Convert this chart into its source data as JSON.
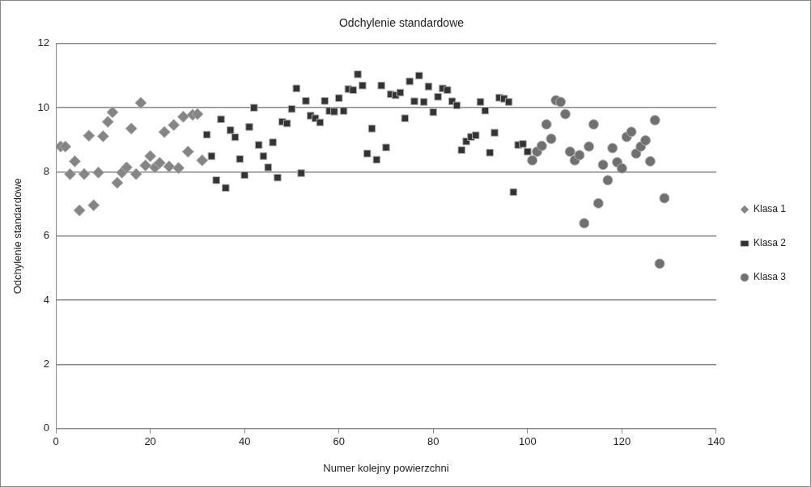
{
  "chart_data": {
    "type": "scatter",
    "title": "Odchylenie standardowe",
    "xlabel": "Numer kolejny powierzchni",
    "ylabel": "Odchylenie standardowe",
    "xlim": [
      0,
      140
    ],
    "xticks": [
      0,
      20,
      40,
      60,
      80,
      100,
      120,
      140
    ],
    "ylim": [
      0,
      12
    ],
    "yticks": [
      0,
      2,
      4,
      6,
      8,
      10,
      12
    ],
    "grid": "y",
    "legend": "right",
    "series": [
      {
        "name": "Klasa 1",
        "color": "#858585",
        "marker": "diamond",
        "x": [
          1,
          2,
          3,
          4,
          5,
          6,
          7,
          8,
          9,
          10,
          11,
          12,
          13,
          14,
          15,
          16,
          17,
          18,
          19,
          20,
          21,
          22,
          23,
          24,
          25,
          26,
          27,
          28,
          29,
          30,
          31
        ],
        "values": [
          8.79,
          8.79,
          7.93,
          8.33,
          6.8,
          7.93,
          9.13,
          6.96,
          7.98,
          9.11,
          9.56,
          9.86,
          7.66,
          7.98,
          8.14,
          9.35,
          7.93,
          10.15,
          8.2,
          8.49,
          8.14,
          8.28,
          9.24,
          8.17,
          9.46,
          8.12,
          9.72,
          8.63,
          9.78,
          9.8,
          8.36
        ]
      },
      {
        "name": "Klasa 2",
        "color": "#333333",
        "marker": "square",
        "x": [
          32,
          33,
          34,
          35,
          36,
          37,
          38,
          39,
          40,
          41,
          42,
          43,
          44,
          45,
          46,
          47,
          48,
          49,
          50,
          51,
          52,
          53,
          54,
          55,
          56,
          57,
          58,
          59,
          60,
          61,
          62,
          63,
          64,
          65,
          66,
          67,
          68,
          69,
          70,
          71,
          72,
          73,
          74,
          75,
          76,
          77,
          78,
          79,
          80,
          81,
          82,
          83,
          84,
          85,
          86,
          87,
          88,
          89,
          90,
          91,
          92,
          93,
          94,
          95,
          96,
          97,
          98,
          99,
          100
        ],
        "values": [
          9.16,
          8.49,
          7.74,
          9.64,
          7.5,
          9.3,
          9.08,
          8.4,
          7.9,
          9.4,
          10.0,
          8.84,
          8.49,
          8.14,
          8.92,
          7.82,
          9.56,
          9.51,
          9.96,
          10.6,
          7.96,
          10.21,
          9.75,
          9.67,
          9.54,
          10.21,
          9.9,
          9.88,
          10.3,
          9.9,
          10.58,
          10.55,
          11.04,
          10.69,
          8.57,
          9.35,
          8.38,
          10.69,
          8.76,
          10.42,
          10.39,
          10.47,
          9.67,
          10.82,
          10.2,
          11.0,
          10.18,
          10.66,
          9.86,
          10.34,
          10.6,
          10.55,
          10.2,
          10.07,
          8.68,
          8.95,
          9.09,
          9.14,
          10.18,
          9.91,
          8.6,
          9.22,
          10.31,
          10.28,
          10.18,
          7.37,
          8.84,
          8.87,
          8.63
        ]
      },
      {
        "name": "Klasa 3",
        "color": "#707070",
        "marker": "circle",
        "x": [
          101,
          102,
          103,
          104,
          105,
          106,
          107,
          108,
          109,
          110,
          111,
          112,
          113,
          114,
          115,
          116,
          117,
          118,
          119,
          120,
          121,
          122,
          123,
          124,
          125,
          126,
          127,
          128,
          129
        ],
        "values": [
          8.36,
          8.63,
          8.81,
          9.48,
          9.03,
          10.23,
          10.18,
          9.8,
          8.63,
          8.36,
          8.52,
          6.4,
          8.79,
          9.48,
          7.02,
          8.22,
          7.74,
          8.74,
          8.3,
          8.11,
          9.09,
          9.25,
          8.57,
          8.79,
          8.98,
          8.33,
          9.61,
          5.14,
          7.18
        ]
      }
    ]
  }
}
